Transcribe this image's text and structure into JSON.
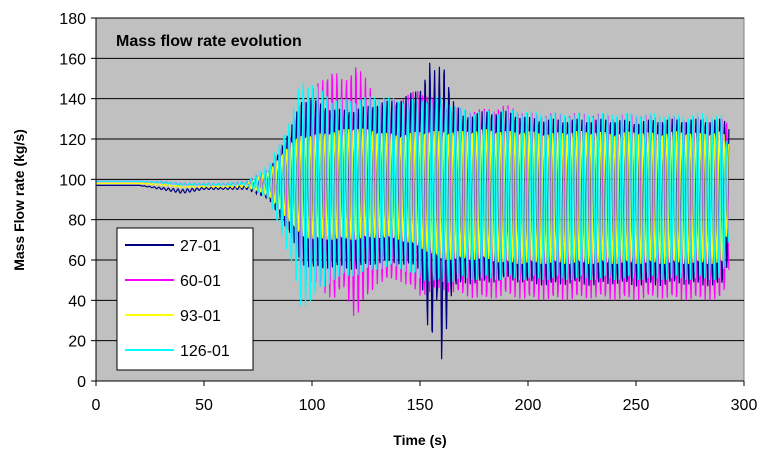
{
  "chart_data": {
    "type": "line",
    "title": "Mass flow rate evolution",
    "xlabel": "Time (s)",
    "ylabel": "Mass Flow rate (kg/s)",
    "xlim": [
      0,
      300
    ],
    "ylim": [
      0,
      180
    ],
    "xticks": [
      0,
      50,
      100,
      150,
      200,
      250,
      300
    ],
    "yticks": [
      0,
      20,
      40,
      60,
      80,
      100,
      120,
      140,
      160,
      180
    ],
    "grid": "horizontal",
    "legend_position": "bottom-left",
    "plot_background": "#c0c0c0",
    "series": [
      {
        "name": "27-01",
        "color": "#000080",
        "x": [
          0,
          20,
          30,
          40,
          50,
          60,
          70,
          80,
          90,
          95,
          100,
          110,
          120,
          130,
          140,
          150,
          155,
          158,
          160,
          165,
          170,
          180,
          190,
          200,
          210,
          220,
          230,
          240,
          250,
          260,
          270,
          280,
          290,
          293
        ],
        "upper": [
          97,
          97,
          96,
          95,
          96,
          96,
          97,
          104,
          125,
          140,
          140,
          135,
          135,
          138,
          140,
          145,
          160,
          150,
          163,
          140,
          132,
          134,
          134,
          131,
          130,
          130,
          130,
          130,
          129,
          130,
          130,
          130,
          130,
          128
        ],
        "lower": [
          97,
          97,
          95,
          93,
          95,
          95,
          95,
          90,
          72,
          58,
          55,
          56,
          55,
          58,
          58,
          55,
          15,
          40,
          10,
          45,
          48,
          48,
          50,
          48,
          47,
          48,
          47,
          48,
          47,
          47,
          48,
          47,
          47,
          60
        ]
      },
      {
        "name": "60-01",
        "color": "#ff00ff",
        "x": [
          0,
          20,
          30,
          40,
          50,
          60,
          70,
          80,
          90,
          95,
          100,
          110,
          115,
          120,
          125,
          130,
          140,
          150,
          160,
          170,
          180,
          190,
          200,
          210,
          220,
          230,
          240,
          250,
          260,
          270,
          280,
          290,
          293
        ],
        "upper": [
          99,
          99,
          99,
          98,
          98,
          98,
          99,
          106,
          125,
          140,
          145,
          155,
          148,
          158,
          150,
          140,
          140,
          145,
          138,
          135,
          135,
          137,
          133,
          133,
          133,
          133,
          132,
          133,
          131,
          131,
          131,
          130,
          128
        ],
        "lower": [
          99,
          99,
          98,
          97,
          97,
          97,
          97,
          92,
          72,
          52,
          48,
          40,
          45,
          30,
          40,
          48,
          50,
          42,
          45,
          42,
          40,
          42,
          40,
          40,
          40,
          41,
          40,
          40,
          41,
          40,
          40,
          40,
          55
        ]
      },
      {
        "name": "93-01",
        "color": "#ffff00",
        "x": [
          0,
          20,
          30,
          40,
          50,
          60,
          70,
          80,
          90,
          95,
          100,
          110,
          120,
          130,
          140,
          150,
          160,
          170,
          180,
          190,
          200,
          210,
          220,
          230,
          240,
          250,
          260,
          270,
          280,
          290,
          293
        ],
        "upper": [
          98,
          98,
          98,
          97,
          97,
          97,
          98,
          104,
          118,
          122,
          122,
          124,
          126,
          124,
          122,
          124,
          124,
          124,
          125,
          124,
          124,
          123,
          124,
          124,
          123,
          124,
          123,
          124,
          123,
          124,
          118
        ],
        "lower": [
          98,
          98,
          97,
          96,
          96,
          96,
          96,
          92,
          78,
          72,
          70,
          70,
          70,
          71,
          70,
          66,
          60,
          60,
          60,
          58,
          58,
          58,
          58,
          58,
          58,
          58,
          58,
          58,
          58,
          58,
          80
        ]
      },
      {
        "name": "126-01",
        "color": "#00ffff",
        "x": [
          0,
          20,
          30,
          40,
          50,
          60,
          70,
          80,
          90,
          95,
          100,
          110,
          120,
          130,
          140,
          150,
          160,
          170,
          180,
          190,
          200,
          210,
          220,
          230,
          240,
          250,
          260,
          270,
          280,
          290,
          293
        ],
        "upper": [
          99,
          99,
          99,
          98,
          98,
          98,
          99,
          107,
          130,
          150,
          148,
          140,
          140,
          142,
          140,
          140,
          141,
          135,
          134,
          135,
          134,
          133,
          133,
          133,
          133,
          133,
          133,
          132,
          133,
          132,
          110
        ],
        "lower": [
          99,
          99,
          98,
          97,
          97,
          97,
          97,
          90,
          60,
          35,
          40,
          50,
          52,
          55,
          56,
          50,
          48,
          50,
          50,
          50,
          50,
          50,
          50,
          50,
          50,
          50,
          50,
          50,
          50,
          50,
          70
        ]
      }
    ]
  }
}
